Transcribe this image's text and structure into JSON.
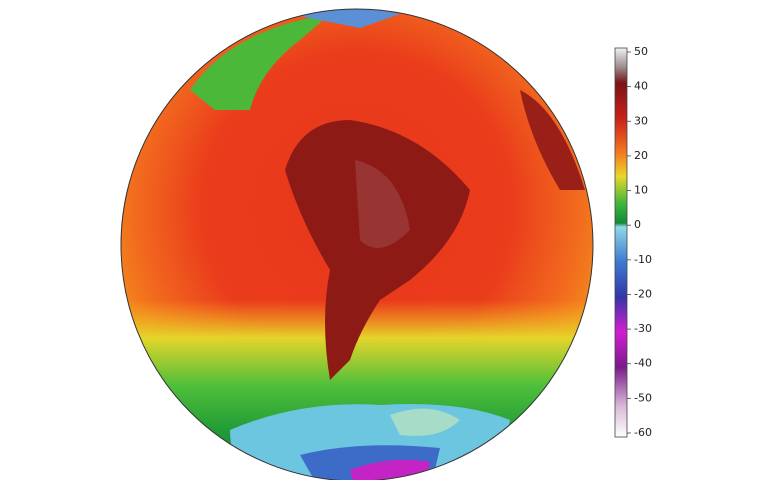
{
  "colorbar": {
    "ticks": [
      50,
      40,
      30,
      20,
      10,
      0,
      -10,
      -20,
      -30,
      -40,
      -50,
      -60
    ]
  }
}
